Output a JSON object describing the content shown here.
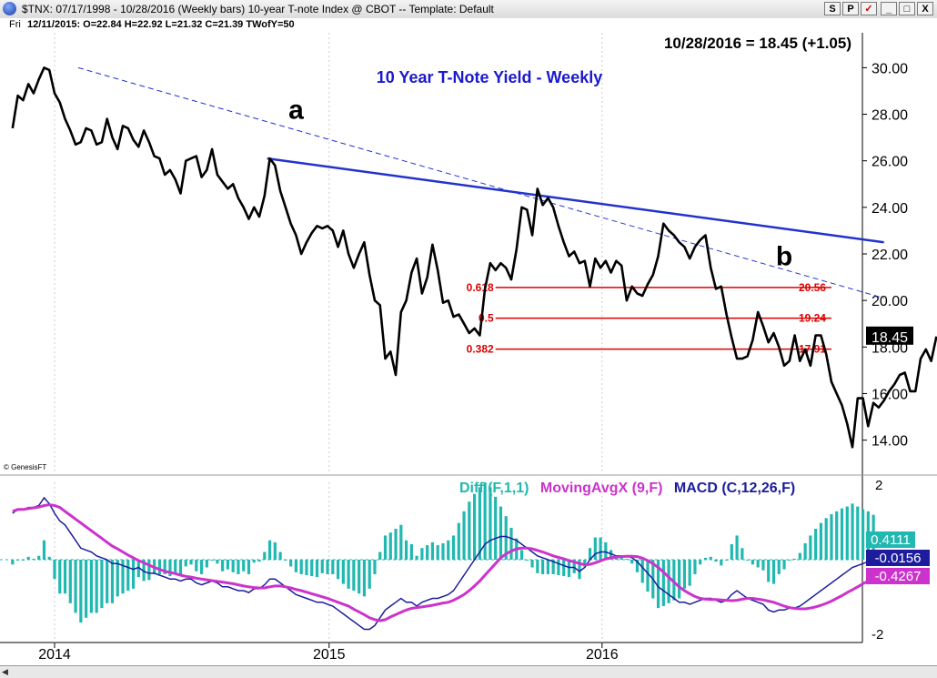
{
  "window": {
    "title": "$TNX: 07/17/1998 - 10/28/2016  (Weekly bars)   10-year T-note Index @ CBOT  --  Template: Default",
    "buttons": [
      "S",
      "P",
      "✓",
      "_",
      "□",
      "X"
    ]
  },
  "infobar": {
    "day": "Fri",
    "ohlc": "12/11/2015:  O=22.84   H=22.92   L=21.32   C=21.39   TWofY=50"
  },
  "chart_data": [
    {
      "type": "line",
      "title": "10 Year T-Note Yield - Weekly",
      "last_label": "10/28/2016 = 18.45 (+1.05)",
      "current_value_label": "18.45",
      "credit": "© GenesisFT",
      "ylim": [
        12.5,
        31.5
      ],
      "y_ticks": [
        "30.00",
        "28.00",
        "26.00",
        "24.00",
        "22.00",
        "20.00",
        "18.00",
        "16.00",
        "14.00"
      ],
      "x_ticks": [
        "2014",
        "2015",
        "2016"
      ],
      "x_tick_weeks": [
        0,
        52.3,
        104.3
      ],
      "annotations": [
        {
          "text": "a",
          "week": 46,
          "value": 28.2
        },
        {
          "text": "b",
          "week": 139,
          "value": 21.9
        }
      ],
      "trendlines": [
        {
          "style": "solid",
          "from": [
            40.5,
            26.1
          ],
          "to": [
            158,
            22.5
          ]
        },
        {
          "style": "dashed",
          "from": [
            4.5,
            30.0
          ],
          "to": [
            158,
            20.1
          ]
        }
      ],
      "fib_levels": [
        {
          "ratio": "0.618",
          "value": 20.56,
          "label": "20.56"
        },
        {
          "ratio": "0.5",
          "value": 19.24,
          "label": "19.24"
        },
        {
          "ratio": "0.382",
          "value": 17.91,
          "label": "17.91"
        }
      ],
      "fib_x_range": [
        84,
        148
      ],
      "series": [
        {
          "start_week": -8,
          "values": [
            27.4,
            28.8,
            28.6,
            29.3,
            28.9,
            29.5,
            30.0,
            29.9,
            28.9,
            28.5,
            27.8,
            27.3,
            26.7,
            26.8,
            27.4,
            27.3,
            26.7,
            26.8,
            27.8,
            27.0,
            26.5,
            27.5,
            27.4,
            26.9,
            26.6,
            27.3,
            26.8,
            26.2,
            26.1,
            25.4,
            25.6,
            25.2,
            24.6,
            26.0,
            26.1,
            26.2,
            25.3,
            25.6,
            26.5,
            25.4,
            25.1,
            24.8,
            25.0,
            24.4,
            24.0,
            23.5,
            24.0,
            23.6,
            24.5,
            26.1,
            25.8,
            24.7,
            24.0,
            23.3,
            22.8,
            22.0,
            22.5,
            22.9,
            23.2,
            23.1,
            23.2,
            23.0,
            22.3,
            23.0,
            22.0,
            21.4,
            22.0,
            22.5,
            21.1,
            20.0,
            19.8,
            17.5,
            17.8,
            16.8,
            19.5,
            20.0,
            21.2,
            21.8,
            20.3,
            21.0,
            22.4,
            21.3,
            19.9,
            20.0,
            19.3,
            19.4,
            19.0,
            18.6,
            18.8,
            18.5,
            20.5,
            21.6,
            21.3,
            21.6,
            21.4,
            20.9,
            22.2,
            24.0,
            23.9,
            22.8,
            24.8,
            24.1,
            24.4,
            24.0,
            23.2,
            22.5,
            21.9,
            22.1,
            21.6,
            21.7,
            20.6,
            21.8,
            21.4,
            21.7,
            21.2,
            21.7,
            21.5,
            20.0,
            20.6,
            20.3,
            20.2,
            20.7,
            21.1,
            21.9,
            23.3,
            23.0,
            22.8,
            22.5,
            22.3,
            21.8,
            22.3,
            22.6,
            22.8,
            21.4,
            20.5,
            20.6,
            19.4,
            18.4,
            17.5,
            17.5,
            17.6,
            18.3,
            19.5,
            18.9,
            18.2,
            18.6,
            18.0,
            17.2,
            17.4,
            18.5,
            17.4,
            17.9,
            17.2,
            18.5,
            18.5,
            17.7,
            16.5,
            16.0,
            15.5,
            14.7,
            13.7,
            15.8,
            15.8,
            14.6,
            15.6,
            15.4,
            15.7,
            16.1,
            16.4,
            16.8,
            16.9,
            16.1,
            16.1,
            17.5,
            17.9,
            17.4,
            18.45
          ]
        }
      ]
    },
    {
      "type": "line",
      "title": "MACD panel",
      "legend": [
        {
          "text": "Diff (F,1,1)",
          "color": "#20b8b0"
        },
        {
          "text": "MovingAvgX (9,F)",
          "color": "#cc33cc"
        },
        {
          "text": "MACD (C,12,26,F)",
          "color": "#1c1c9c"
        }
      ],
      "ylim": [
        -2,
        2
      ],
      "y_ticks": [
        "2",
        "-2"
      ],
      "value_labels": [
        {
          "text": "0.4111",
          "value": 0.4111,
          "color": "#20b8b0"
        },
        {
          "text": "-0.0156",
          "value": -0.0156,
          "color": "#1c1c9c"
        },
        {
          "text": "-0.4267",
          "value": -0.4267,
          "color": "#cc33cc"
        }
      ],
      "series": [
        {
          "name": "MACD (C,12,26,F)",
          "color": "#1c1c9c",
          "start_week": -8,
          "values": [
            1.2,
            1.3,
            1.3,
            1.35,
            1.35,
            1.4,
            1.6,
            1.45,
            1.2,
            1.0,
            0.9,
            0.7,
            0.5,
            0.3,
            0.25,
            0.2,
            0.1,
            0.05,
            0.0,
            -0.1,
            -0.1,
            -0.15,
            -0.2,
            -0.25,
            -0.2,
            -0.3,
            -0.35,
            -0.35,
            -0.4,
            -0.45,
            -0.5,
            -0.5,
            -0.55,
            -0.5,
            -0.5,
            -0.6,
            -0.65,
            -0.6,
            -0.55,
            -0.6,
            -0.7,
            -0.7,
            -0.75,
            -0.8,
            -0.8,
            -0.85,
            -0.75,
            -0.75,
            -0.65,
            -0.5,
            -0.5,
            -0.6,
            -0.7,
            -0.8,
            -0.9,
            -0.95,
            -1.0,
            -1.05,
            -1.1,
            -1.1,
            -1.15,
            -1.2,
            -1.3,
            -1.4,
            -1.5,
            -1.6,
            -1.7,
            -1.8,
            -1.8,
            -1.7,
            -1.5,
            -1.3,
            -1.2,
            -1.1,
            -1.0,
            -1.1,
            -1.1,
            -1.2,
            -1.1,
            -1.05,
            -1.0,
            -1.0,
            -0.95,
            -0.9,
            -0.8,
            -0.6,
            -0.4,
            -0.2,
            0.0,
            0.2,
            0.4,
            0.5,
            0.55,
            0.6,
            0.6,
            0.55,
            0.5,
            0.4,
            0.3,
            0.2,
            0.1,
            0.05,
            0.0,
            -0.05,
            -0.1,
            -0.15,
            -0.2,
            -0.2,
            -0.3,
            -0.2,
            0.0,
            0.15,
            0.2,
            0.2,
            0.15,
            0.1,
            0.1,
            0.1,
            0.05,
            -0.05,
            -0.2,
            -0.35,
            -0.5,
            -0.7,
            -0.8,
            -0.9,
            -1.0,
            -1.1,
            -1.1,
            -1.15,
            -1.1,
            -1.05,
            -1.0,
            -1.0,
            -1.05,
            -1.1,
            -1.05,
            -0.9,
            -0.8,
            -0.9,
            -1.0,
            -1.05,
            -1.1,
            -1.15,
            -1.3,
            -1.35,
            -1.3,
            -1.3,
            -1.25,
            -1.25,
            -1.2,
            -1.1,
            -1.0,
            -0.9,
            -0.8,
            -0.7,
            -0.6,
            -0.5,
            -0.4,
            -0.3,
            -0.2,
            -0.15,
            -0.1,
            -0.05,
            -0.0156
          ]
        },
        {
          "name": "MovingAvgX (9,F)",
          "color": "#cc33cc",
          "start_week": -8,
          "values": [
            1.25,
            1.3,
            1.3,
            1.32,
            1.34,
            1.36,
            1.4,
            1.42,
            1.4,
            1.35,
            1.25,
            1.15,
            1.05,
            0.95,
            0.85,
            0.75,
            0.65,
            0.55,
            0.45,
            0.35,
            0.28,
            0.2,
            0.12,
            0.05,
            -0.02,
            -0.08,
            -0.14,
            -0.2,
            -0.25,
            -0.3,
            -0.33,
            -0.36,
            -0.4,
            -0.43,
            -0.45,
            -0.48,
            -0.5,
            -0.52,
            -0.54,
            -0.56,
            -0.58,
            -0.6,
            -0.62,
            -0.65,
            -0.68,
            -0.7,
            -0.72,
            -0.73,
            -0.73,
            -0.7,
            -0.68,
            -0.68,
            -0.7,
            -0.73,
            -0.77,
            -0.8,
            -0.84,
            -0.88,
            -0.92,
            -0.96,
            -1.0,
            -1.05,
            -1.1,
            -1.15,
            -1.2,
            -1.28,
            -1.35,
            -1.42,
            -1.5,
            -1.55,
            -1.58,
            -1.55,
            -1.48,
            -1.42,
            -1.36,
            -1.3,
            -1.26,
            -1.24,
            -1.22,
            -1.2,
            -1.18,
            -1.15,
            -1.12,
            -1.1,
            -1.05,
            -0.98,
            -0.9,
            -0.8,
            -0.68,
            -0.55,
            -0.4,
            -0.25,
            -0.1,
            0.05,
            0.15,
            0.22,
            0.28,
            0.3,
            0.3,
            0.28,
            0.24,
            0.2,
            0.15,
            0.1,
            0.06,
            0.02,
            -0.02,
            -0.06,
            -0.1,
            -0.13,
            -0.12,
            -0.08,
            -0.03,
            0.02,
            0.05,
            0.07,
            0.08,
            0.09,
            0.09,
            0.08,
            0.04,
            -0.02,
            -0.1,
            -0.2,
            -0.32,
            -0.45,
            -0.58,
            -0.7,
            -0.8,
            -0.88,
            -0.95,
            -1.0,
            -1.02,
            -1.03,
            -1.03,
            -1.04,
            -1.05,
            -1.06,
            -1.05,
            -1.02,
            -1.0,
            -1.0,
            -1.02,
            -1.04,
            -1.07,
            -1.1,
            -1.15,
            -1.2,
            -1.24,
            -1.26,
            -1.27,
            -1.27,
            -1.25,
            -1.22,
            -1.18,
            -1.13,
            -1.07,
            -1.0,
            -0.93,
            -0.85,
            -0.78,
            -0.7,
            -0.62,
            -0.55,
            -0.48,
            -0.4267
          ]
        }
      ]
    }
  ]
}
